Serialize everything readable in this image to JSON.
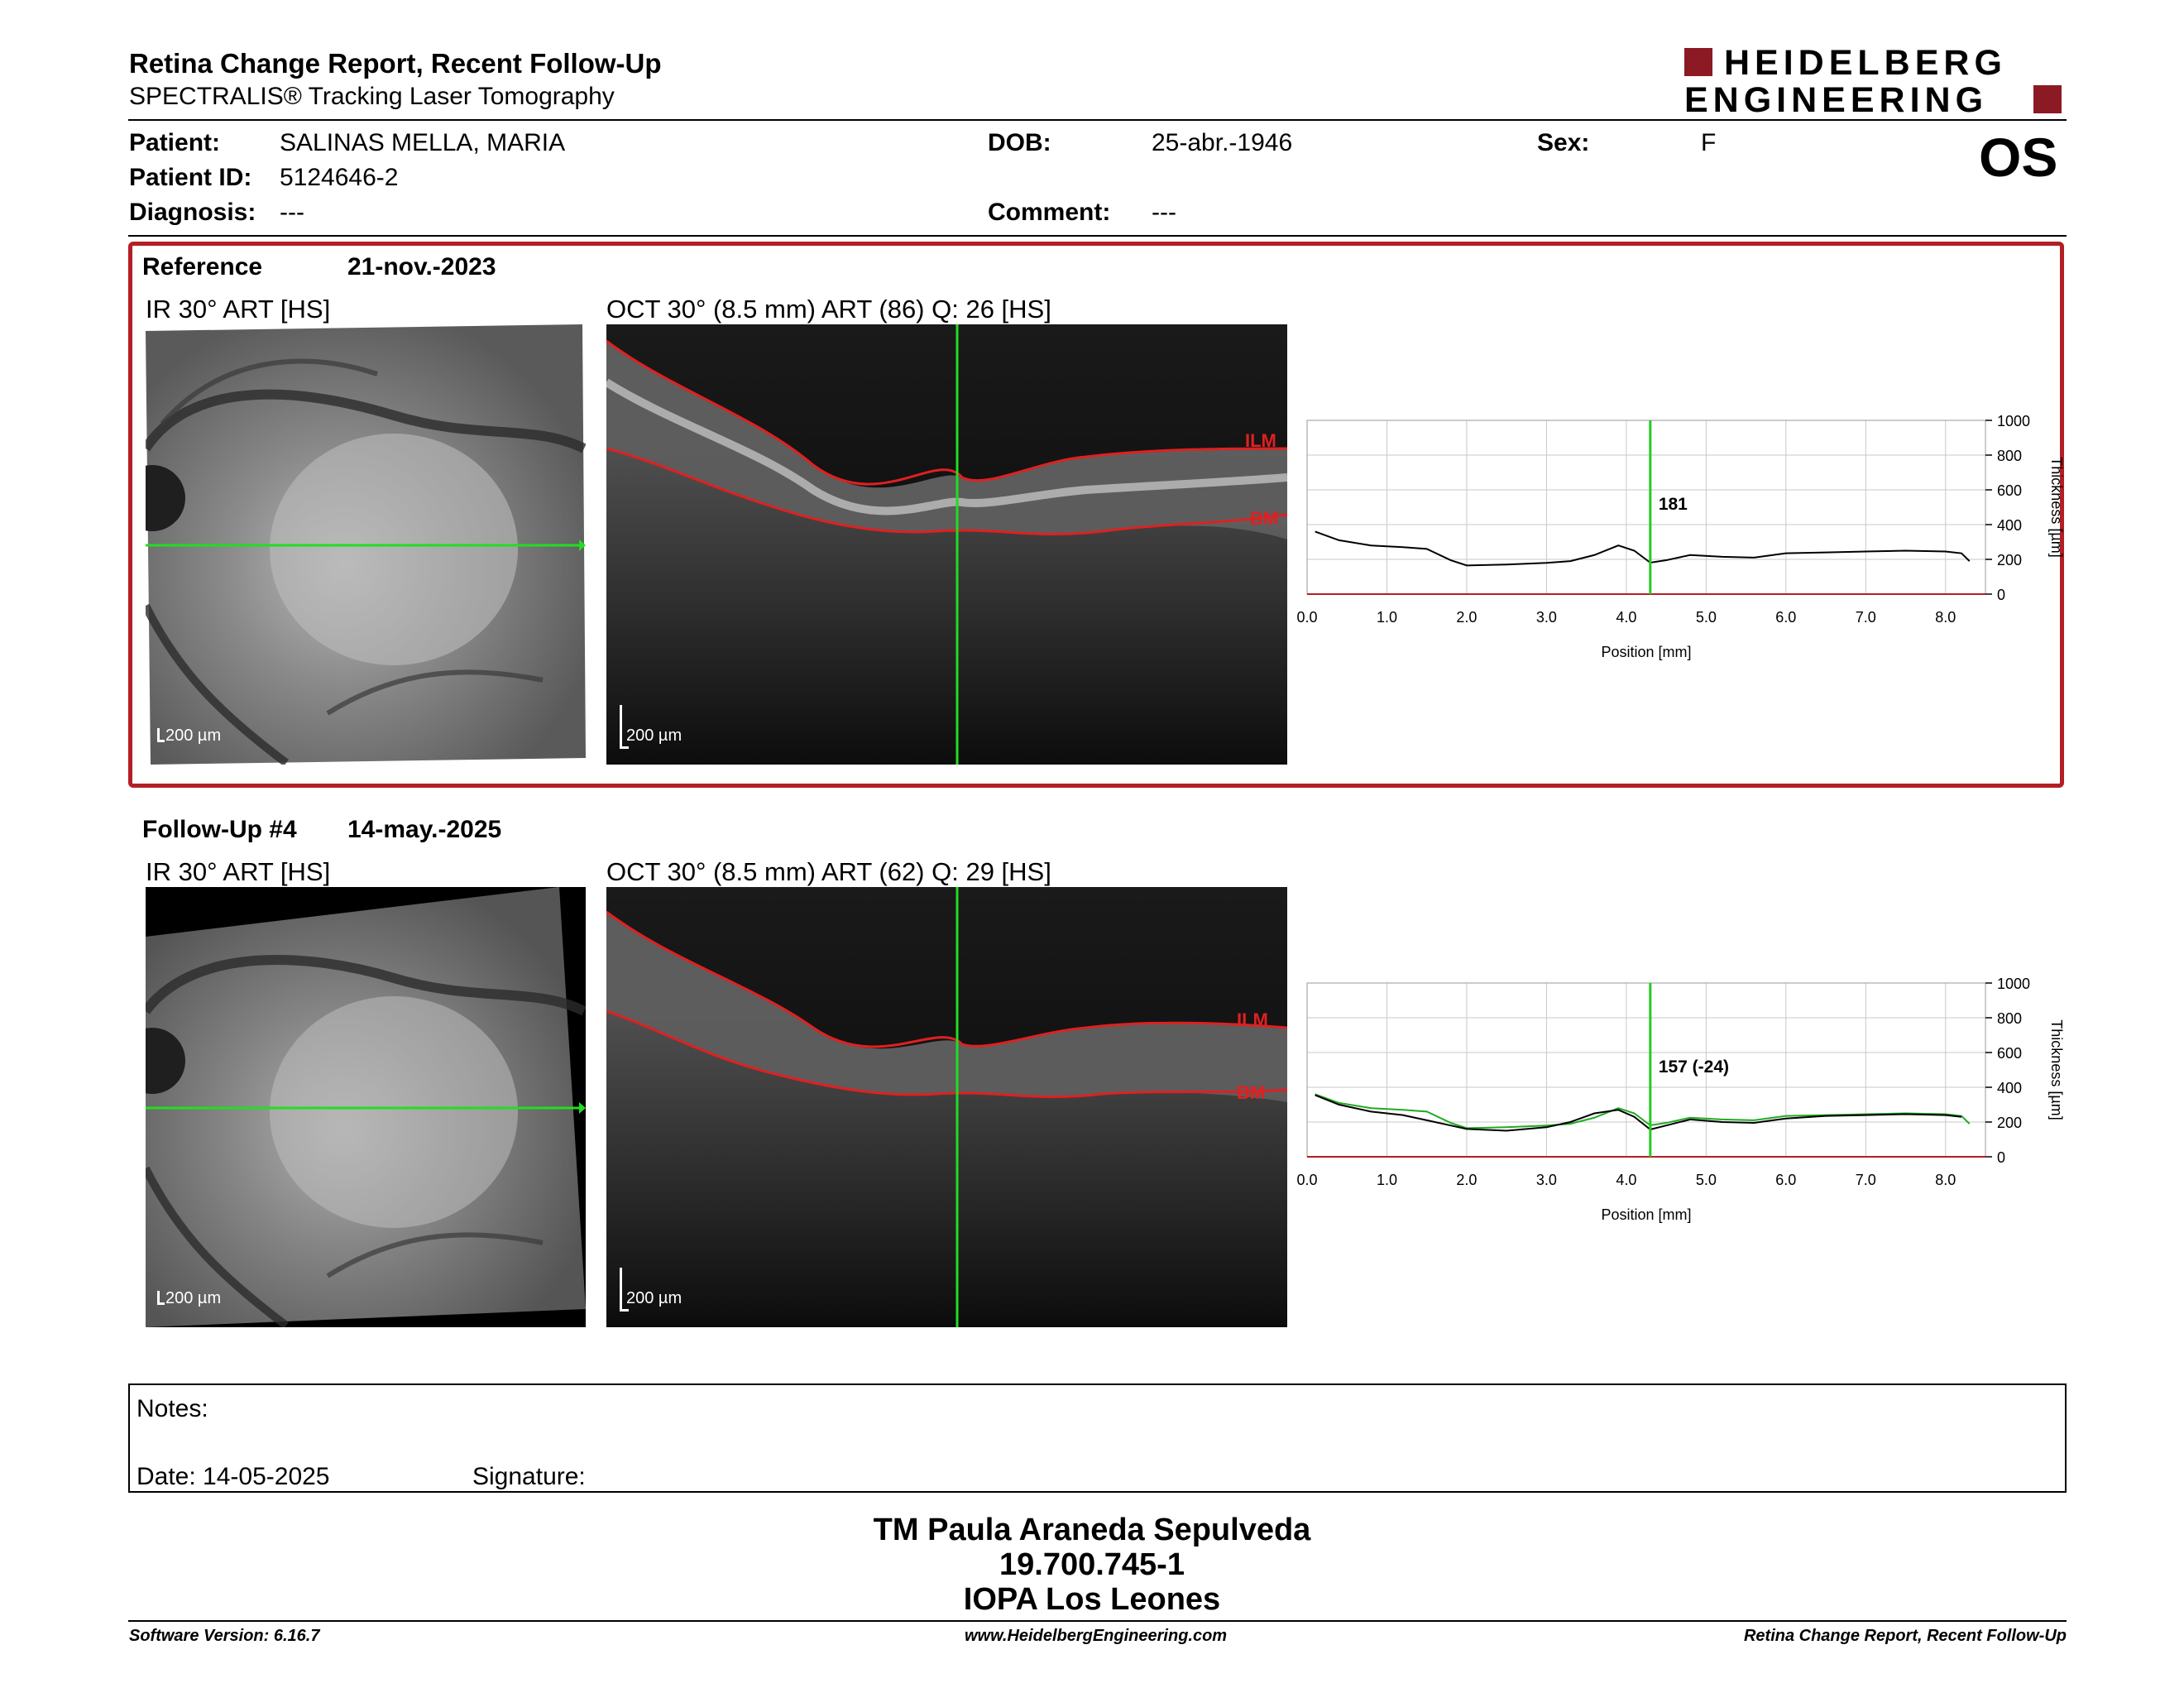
{
  "header": {
    "title": "Retina Change Report, Recent Follow-Up",
    "subtitle": "SPECTRALIS® Tracking Laser Tomography",
    "logo_line1": "HEIDELBERG",
    "logo_line2": "ENGINEERING",
    "eye": "OS"
  },
  "patient": {
    "patient_label": "Patient:",
    "patient_value": "SALINAS MELLA, MARIA",
    "id_label": "Patient ID:",
    "id_value": "5124646-2",
    "diagnosis_label": "Diagnosis:",
    "diagnosis_value": "---",
    "dob_label": "DOB:",
    "dob_value": "25-abr.-1946",
    "comment_label": "Comment:",
    "comment_value": "---",
    "sex_label": "Sex:",
    "sex_value": "F"
  },
  "reference": {
    "label": "Reference",
    "date": "21-nov.-2023",
    "ir_title": "IR 30° ART [HS]",
    "oct_title": "OCT 30° (8.5 mm) ART (86) Q: 26 [HS]",
    "scale_ir": "200 µm",
    "scale_oct": "200 µm",
    "ilm": "ILM",
    "bm": "BM",
    "cursor_value": "181"
  },
  "followup": {
    "label": "Follow-Up #4",
    "date": "14-may.-2025",
    "ir_title": "IR 30° ART [HS]",
    "oct_title": "OCT 30° (8.5 mm) ART (62) Q: 29 [HS]",
    "scale_ir": "200 µm",
    "scale_oct": "200 µm",
    "ilm": "ILM",
    "bm": "BM",
    "cursor_value": "157 (-24)"
  },
  "chart_data": [
    {
      "type": "line",
      "title": "",
      "xlabel": "Position [mm]",
      "ylabel": "Thickness [µm]",
      "xlim": [
        0,
        8.5
      ],
      "ylim": [
        0,
        1000
      ],
      "xticks": [
        "0.0",
        "1.0",
        "2.0",
        "3.0",
        "4.0",
        "5.0",
        "6.0",
        "7.0",
        "8.0"
      ],
      "yticks": [
        "0",
        "200",
        "400",
        "600",
        "800",
        "1000"
      ],
      "cursor_x": 4.3,
      "cursor_label": "181",
      "grid": true,
      "colors": {
        "line": "#000000",
        "cursor": "#22cc22",
        "baseline": "#b41e25"
      },
      "series": [
        {
          "x": [
            0.1,
            0.4,
            0.8,
            1.2,
            1.5,
            1.8,
            2.0,
            2.5,
            3.0,
            3.3,
            3.6,
            3.9,
            4.1,
            4.3,
            4.5,
            4.8,
            5.2,
            5.6,
            6.0,
            6.5,
            7.0,
            7.5,
            8.0,
            8.2,
            8.3
          ],
          "y": [
            360,
            310,
            280,
            270,
            260,
            195,
            165,
            170,
            180,
            190,
            225,
            280,
            250,
            181,
            195,
            225,
            215,
            210,
            235,
            240,
            245,
            250,
            245,
            235,
            190
          ]
        }
      ]
    },
    {
      "type": "line",
      "title": "",
      "xlabel": "Position [mm]",
      "ylabel": "Thickness [µm]",
      "xlim": [
        0,
        8.5
      ],
      "ylim": [
        0,
        1000
      ],
      "xticks": [
        "0.0",
        "1.0",
        "2.0",
        "3.0",
        "4.0",
        "5.0",
        "6.0",
        "7.0",
        "8.0"
      ],
      "yticks": [
        "0",
        "200",
        "400",
        "600",
        "800",
        "1000"
      ],
      "cursor_x": 4.3,
      "cursor_label": "157 (-24)",
      "grid": true,
      "colors": {
        "line": "#000000",
        "reference": "#22aa22",
        "cursor": "#22cc22",
        "baseline": "#b41e25"
      },
      "series": [
        {
          "x": [
            0.1,
            0.4,
            0.8,
            1.2,
            1.5,
            1.8,
            2.0,
            2.5,
            3.0,
            3.3,
            3.6,
            3.9,
            4.1,
            4.3,
            4.5,
            4.8,
            5.2,
            5.6,
            6.0,
            6.5,
            7.0,
            7.5,
            8.0,
            8.2
          ],
          "y": [
            355,
            300,
            260,
            240,
            210,
            180,
            160,
            150,
            170,
            200,
            250,
            270,
            230,
            157,
            180,
            215,
            200,
            195,
            220,
            235,
            240,
            245,
            240,
            230
          ]
        }
      ]
    }
  ],
  "notes": {
    "label": "Notes:",
    "date": "Date: 14-05-2025",
    "signature": "Signature:"
  },
  "signatory": {
    "name": "TM Paula Araneda Sepulveda",
    "id": "19.700.745-1",
    "org": "IOPA Los Leones"
  },
  "footer": {
    "software": "Software Version: 6.16.7",
    "website": "www.HeidelbergEngineering.com",
    "report": "Retina Change Report, Recent Follow-Up"
  }
}
